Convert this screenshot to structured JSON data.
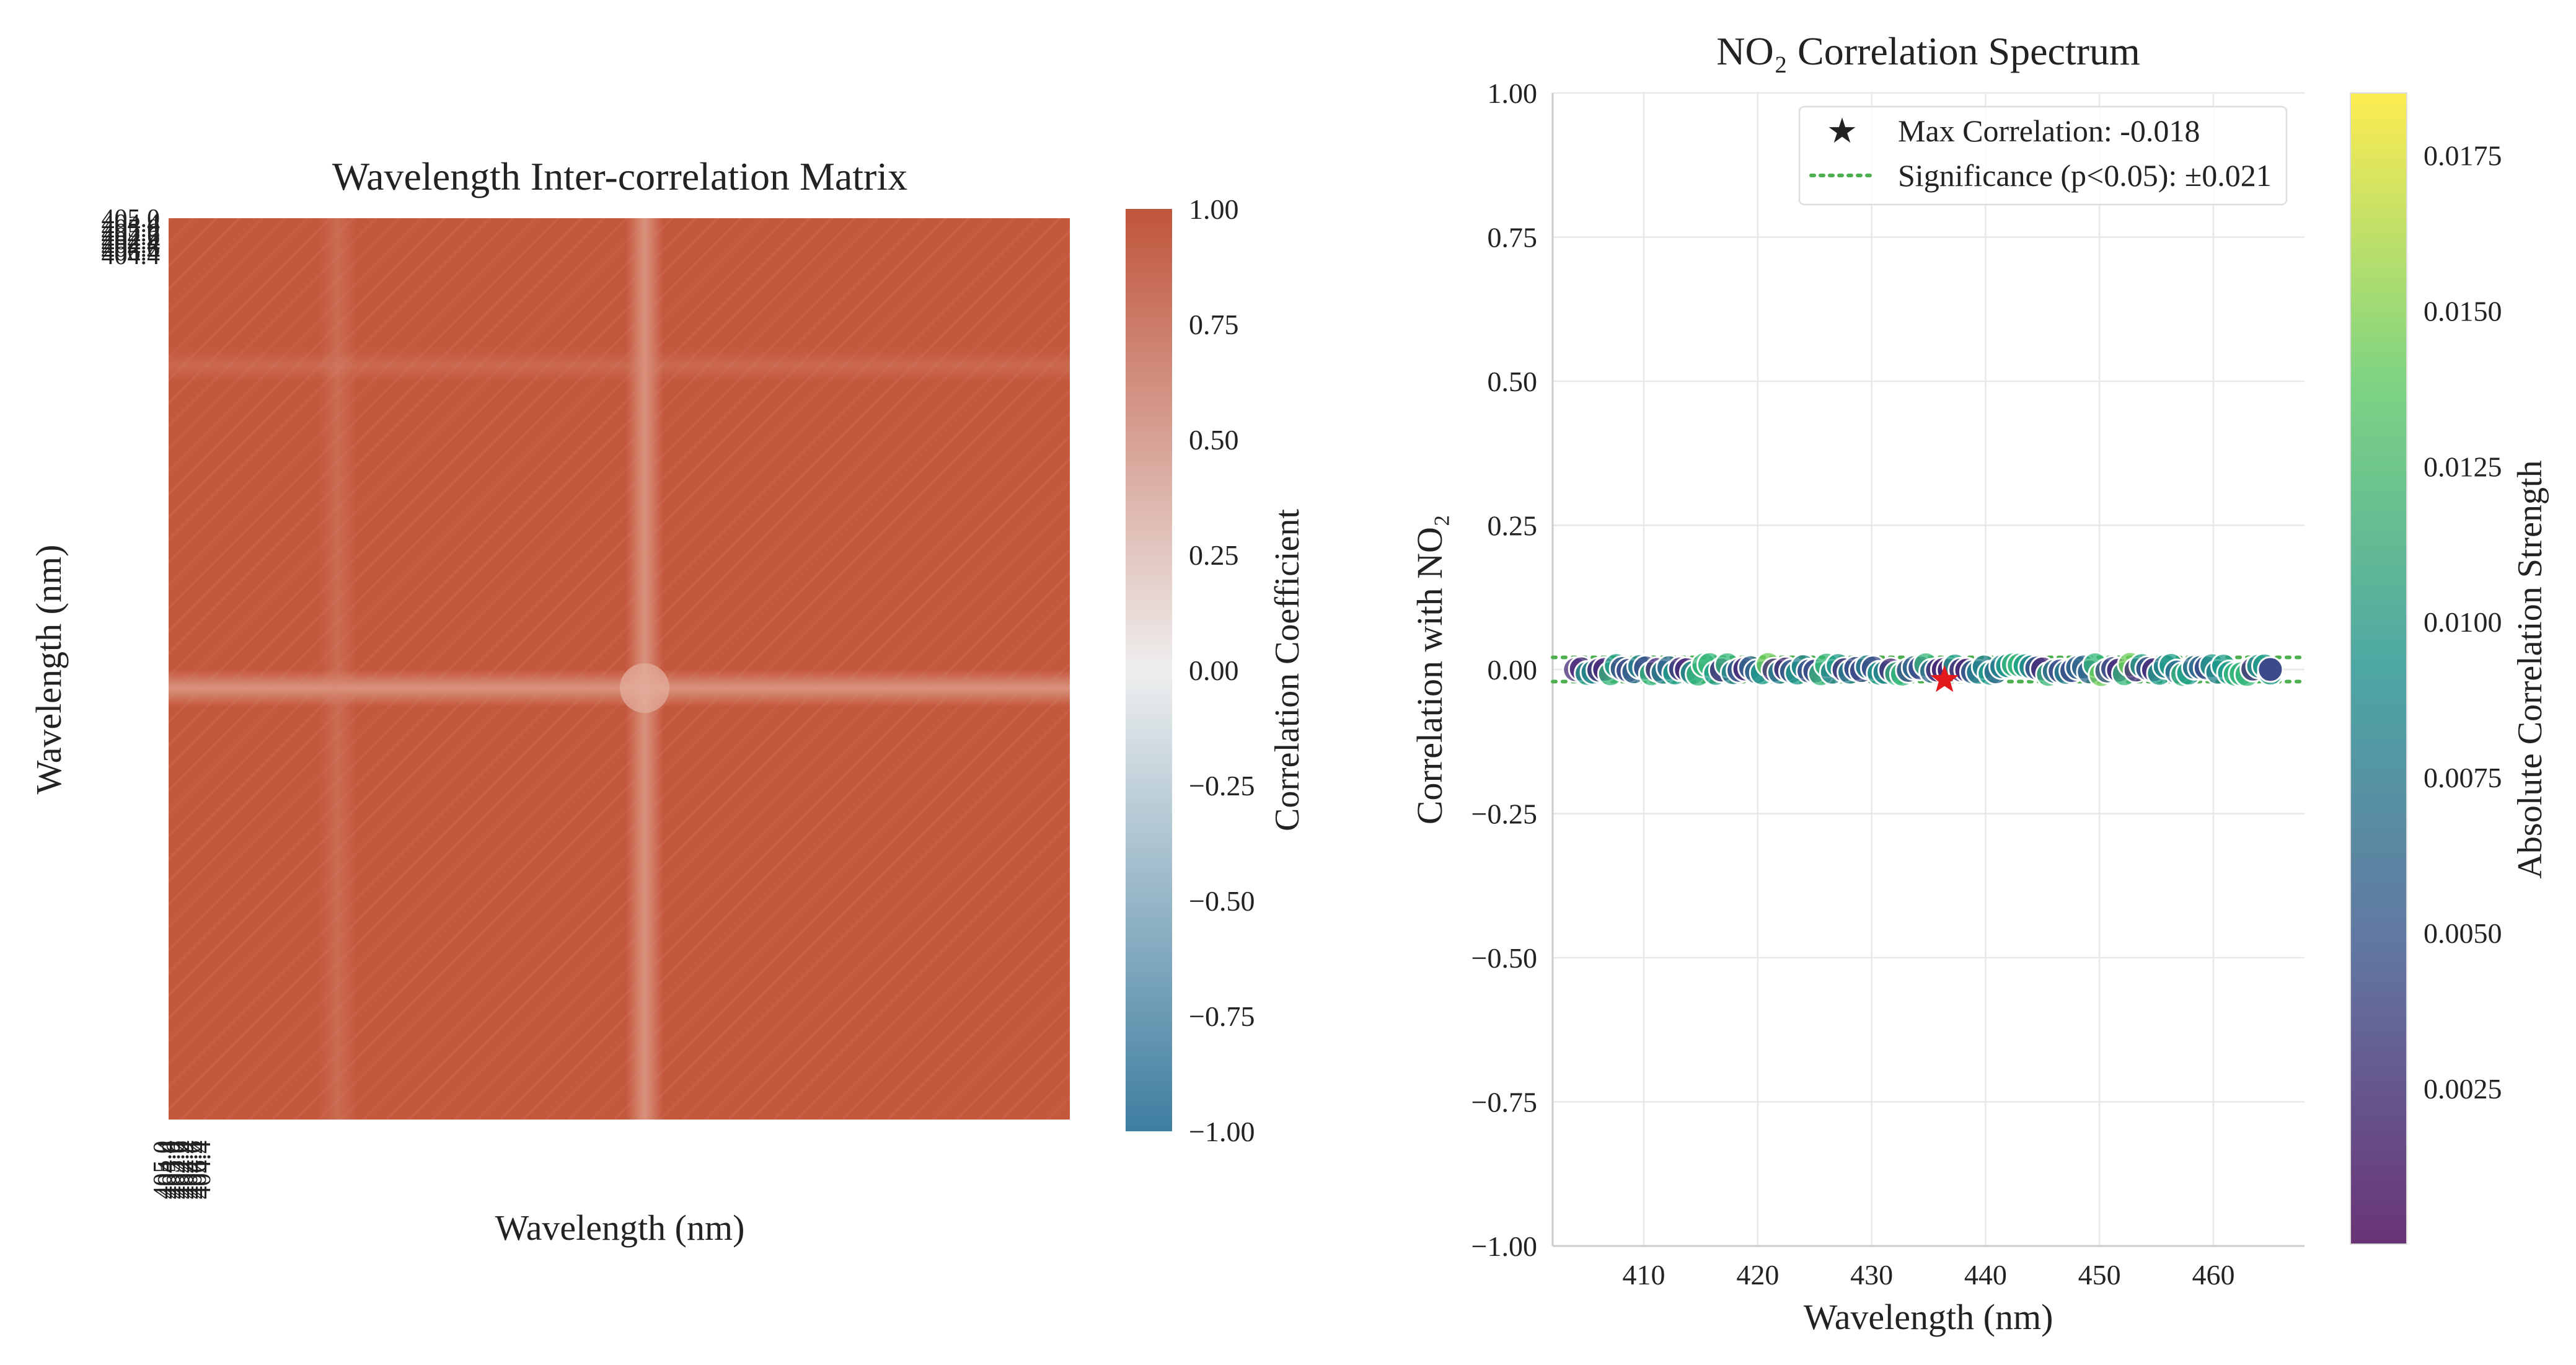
{
  "chart_data": [
    {
      "type": "heatmap",
      "title": "Wavelength Inter-correlation Matrix",
      "xlabel": "Wavelength (nm)",
      "ylabel": "Wavelength (nm)",
      "tick_labels": [
        "405.0",
        "404.4",
        "405.0",
        "405.6",
        "404.6",
        "404.4",
        "404.4",
        "404.6",
        "406.4",
        "404.4"
      ],
      "value_summary": "All off-diagonal correlations approximately 0.95, with a slightly weaker band near 437 nm",
      "base_value": 0.95,
      "weak_band_value": 0.85,
      "colorbar": {
        "label": "Correlation Coefficient",
        "range": [
          -1.0,
          1.0
        ],
        "ticks": [
          "1.00",
          "0.75",
          "0.50",
          "0.25",
          "0.00",
          "−0.25",
          "−0.50",
          "−0.75",
          "−1.00"
        ],
        "colors": [
          "#3e7ea0",
          "#eeeeee",
          "#c0553b"
        ]
      }
    },
    {
      "type": "scatter",
      "title": "NO₂ Correlation Spectrum",
      "xlabel": "Wavelength (nm)",
      "ylabel": "Correlation with NO₂",
      "xlim": [
        402,
        468
      ],
      "ylim": [
        -1.0,
        1.0
      ],
      "x_ticks": [
        "410",
        "420",
        "430",
        "440",
        "450",
        "460"
      ],
      "y_ticks": [
        "1.00",
        "0.75",
        "0.50",
        "0.25",
        "0.00",
        "−0.25",
        "−0.50",
        "−0.75",
        "−1.00"
      ],
      "grid": true,
      "legend": {
        "position": "top-right",
        "entries": [
          "Max Correlation: -0.018",
          "Significance (p<0.05): ±0.021"
        ]
      },
      "series": [
        {
          "wavelength_range": [
            404.0,
            465.0
          ],
          "correlation_range": [
            -0.018,
            0.018
          ],
          "max_x": 436.4,
          "max_y": -0.018
        }
      ],
      "significance": [
        0.021,
        -0.021
      ],
      "colorbar": {
        "label": "Absolute Correlation Strength",
        "range": [
          0.0,
          0.0185
        ],
        "ticks": [
          "0.0025",
          "0.0050",
          "0.0075",
          "0.0100",
          "0.0125",
          "0.0150",
          "0.0175"
        ],
        "colormap": "viridis"
      },
      "colors": {
        "star": "#e31a1c",
        "significance": "#4caf50"
      }
    }
  ]
}
